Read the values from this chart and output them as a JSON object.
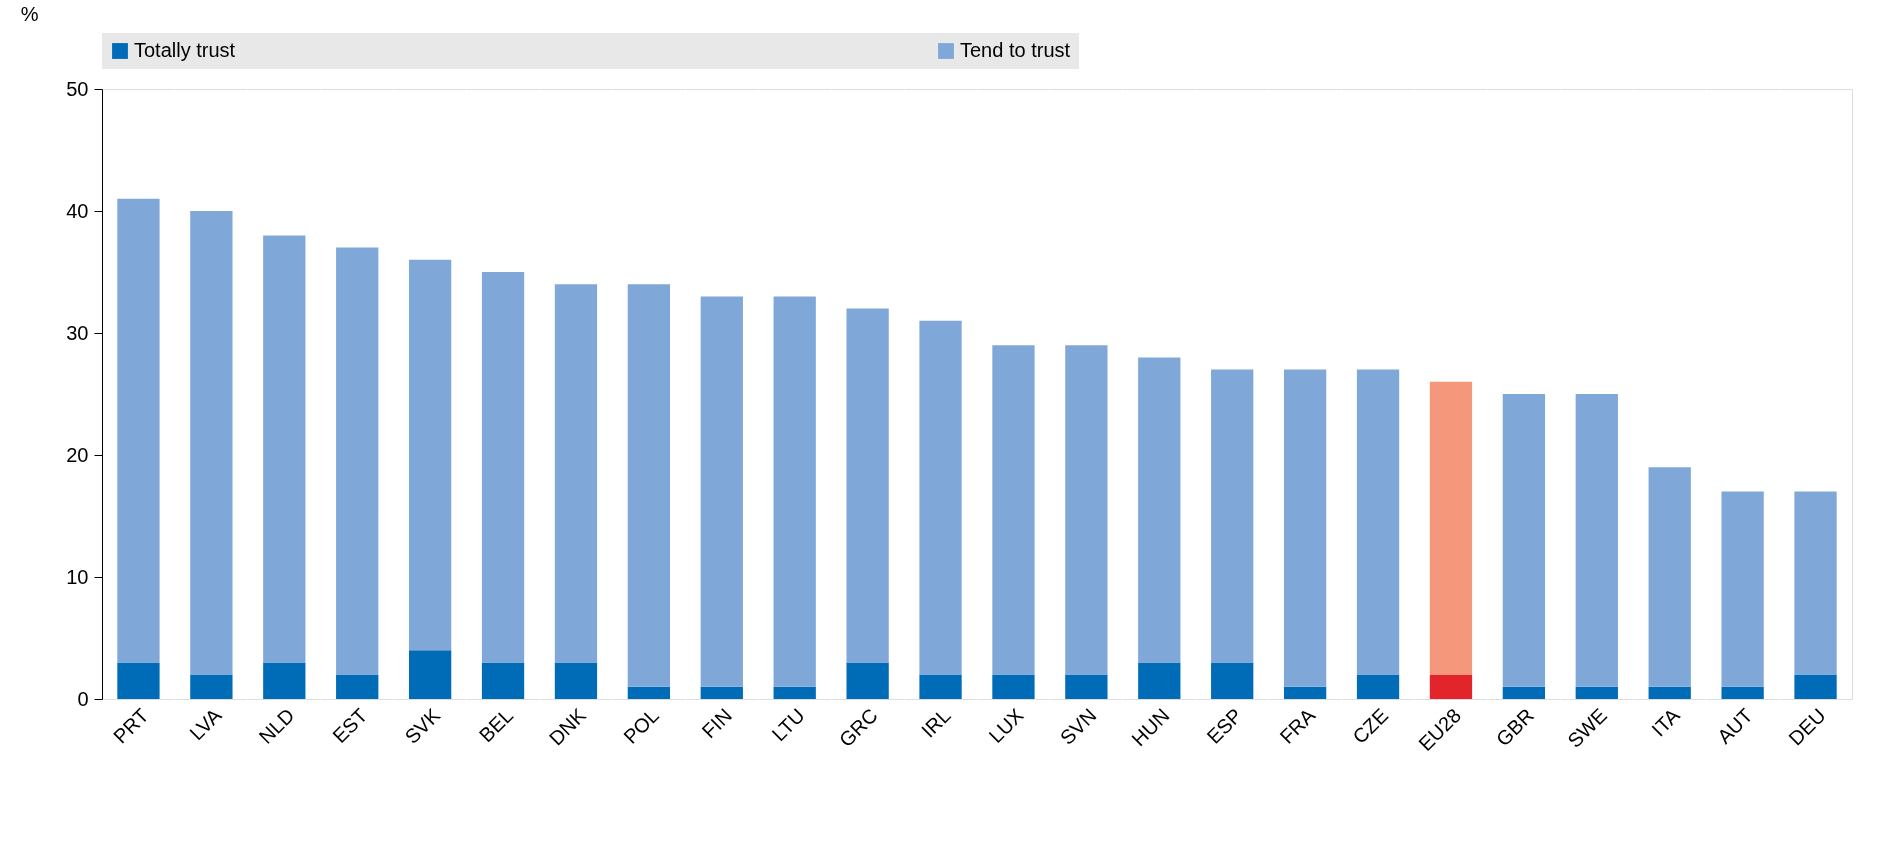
{
  "chart_data": {
    "type": "bar",
    "stacked": true,
    "ylabel": "%",
    "categories": [
      "PRT",
      "LVA",
      "NLD",
      "EST",
      "SVK",
      "BEL",
      "DNK",
      "POL",
      "FIN",
      "LTU",
      "GRC",
      "IRL",
      "LUX",
      "SVN",
      "HUN",
      "ESP",
      "FRA",
      "CZE",
      "EU28",
      "GBR",
      "SWE",
      "ITA",
      "AUT",
      "DEU"
    ],
    "series": [
      {
        "name": "Totally trust",
        "color": "#006bb6",
        "colors": [
          "#006bb6",
          "#006bb6",
          "#006bb6",
          "#006bb6",
          "#006bb6",
          "#006bb6",
          "#006bb6",
          "#006bb6",
          "#006bb6",
          "#006bb6",
          "#006bb6",
          "#006bb6",
          "#006bb6",
          "#006bb6",
          "#006bb6",
          "#006bb6",
          "#006bb6",
          "#006bb6",
          "#e3242b",
          "#006bb6",
          "#006bb6",
          "#006bb6",
          "#006bb6",
          "#006bb6"
        ],
        "values": [
          3,
          2,
          3,
          2,
          4,
          3,
          3,
          1,
          1,
          1,
          3,
          2,
          2,
          2,
          3,
          3,
          1,
          2,
          2,
          1,
          1,
          1,
          1,
          2
        ]
      },
      {
        "name": "Tend to trust",
        "color": "#7fa8d9",
        "colors": [
          "#7fa8d9",
          "#7fa8d9",
          "#7fa8d9",
          "#7fa8d9",
          "#7fa8d9",
          "#7fa8d9",
          "#7fa8d9",
          "#7fa8d9",
          "#7fa8d9",
          "#7fa8d9",
          "#7fa8d9",
          "#7fa8d9",
          "#7fa8d9",
          "#7fa8d9",
          "#7fa8d9",
          "#7fa8d9",
          "#7fa8d9",
          "#7fa8d9",
          "#f4977b",
          "#7fa8d9",
          "#7fa8d9",
          "#7fa8d9",
          "#7fa8d9",
          "#7fa8d9"
        ],
        "values": [
          38,
          38,
          35,
          35,
          32,
          32,
          31,
          33,
          32,
          32,
          29,
          29,
          27,
          27,
          25,
          24,
          26,
          25,
          24,
          24,
          24,
          18,
          16,
          15
        ]
      }
    ],
    "ylim": [
      0,
      50
    ],
    "yticks": [
      0,
      10,
      20,
      30,
      40,
      50
    ],
    "grid": "x",
    "legend": "top"
  }
}
